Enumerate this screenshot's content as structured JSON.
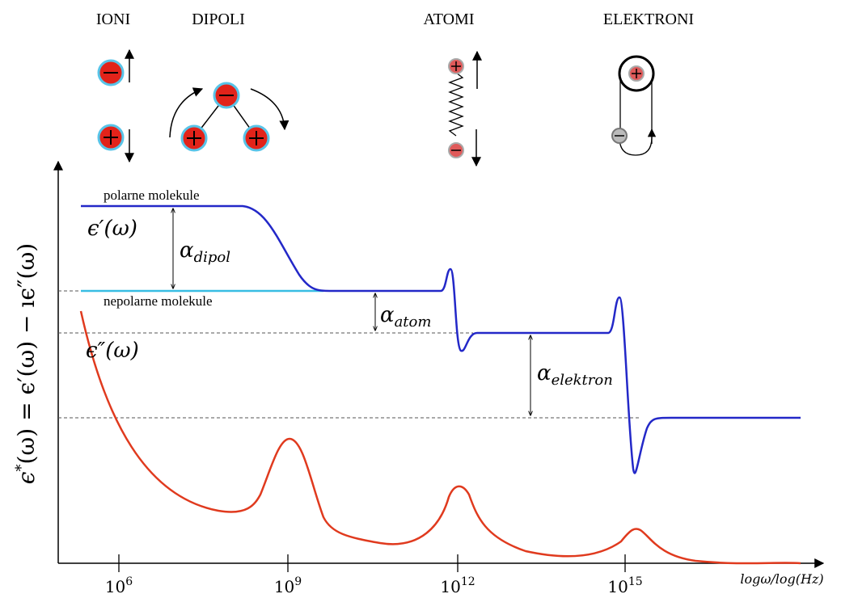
{
  "header": {
    "groups": [
      "IONI",
      "DIPOLI",
      "ATOMI",
      "ELEKTRONI"
    ]
  },
  "plot": {
    "y_axis_label": {
      "a": "ϵ",
      "a_sup": "*",
      "b": "(ω) = ϵ′(ω) − ıϵ″(ω)"
    },
    "x_axis_label": "logω/log(Hz)",
    "x_ticks": [
      {
        "base": "10",
        "exp": "6"
      },
      {
        "base": "10",
        "exp": "9"
      },
      {
        "base": "10",
        "exp": "12"
      },
      {
        "base": "10",
        "exp": "15"
      }
    ],
    "polar_label": "polarne molekule",
    "nonpolar_label": "nepolarne molekule",
    "real_part": "ϵ′(ω)",
    "imag_part": "ϵ″(ω)",
    "alphas": [
      {
        "symbol": "α",
        "sub": "dipol"
      },
      {
        "symbol": "α",
        "sub": "atom"
      },
      {
        "symbol": "α",
        "sub": "elektron"
      }
    ]
  }
}
